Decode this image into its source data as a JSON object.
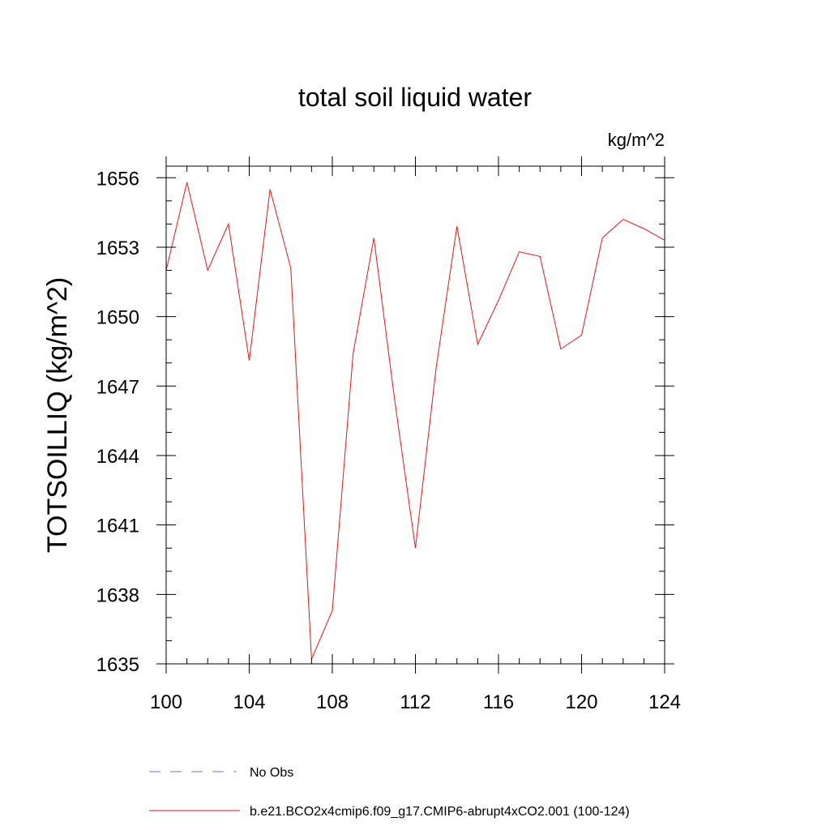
{
  "chart_data": {
    "type": "line",
    "title": "total soil liquid water",
    "units_label": "kg/m^2",
    "xlabel": "",
    "ylabel": "TOTSOILLIQ  (kg/m^2)",
    "xlim": [
      100,
      124
    ],
    "ylim": [
      1635,
      1656.5
    ],
    "x_ticks": [
      100,
      104,
      108,
      112,
      116,
      120,
      124
    ],
    "y_ticks": [
      1635,
      1638,
      1641,
      1644,
      1647,
      1650,
      1653,
      1656
    ],
    "x_minor_step": 1,
    "y_minor_step": 1,
    "grid": false,
    "legend_position": "bottom-left",
    "series": [
      {
        "name": "No Obs",
        "style": "dashed",
        "color": "#7b72c8",
        "x": [],
        "values": []
      },
      {
        "name": "b.e21.BCO2x4cmip6.f09_g17.CMIP6-abrupt4xCO2.001 (100-124)",
        "style": "solid",
        "color": "#e01818",
        "x": [
          100,
          101,
          102,
          103,
          104,
          105,
          106,
          107,
          108,
          109,
          110,
          111,
          112,
          113,
          114,
          115,
          116,
          117,
          118,
          119,
          120,
          121,
          122,
          123,
          124
        ],
        "values": [
          1652.0,
          1655.8,
          1652.0,
          1654.0,
          1648.1,
          1655.5,
          1652.1,
          1635.2,
          1637.3,
          1648.4,
          1653.4,
          1646.4,
          1640.0,
          1647.8,
          1653.9,
          1648.8,
          1650.7,
          1652.8,
          1652.6,
          1648.6,
          1649.2,
          1653.4,
          1654.2,
          1653.8,
          1653.3
        ]
      }
    ]
  }
}
